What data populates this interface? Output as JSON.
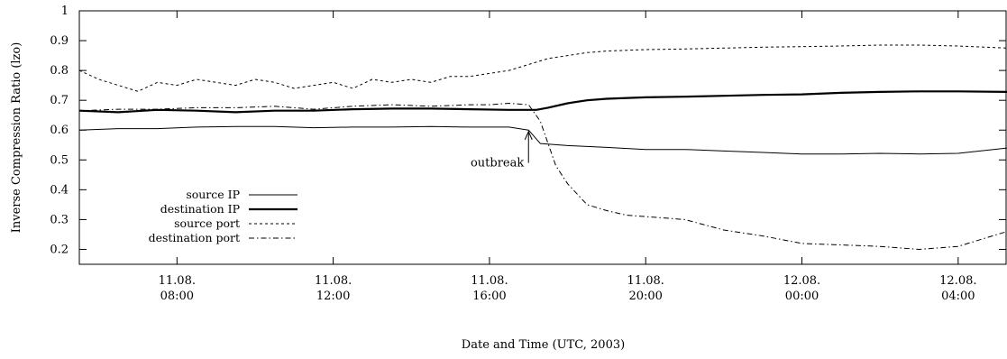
{
  "chart_data": {
    "type": "line",
    "title": "",
    "xlabel": "Date and Time (UTC, 2003)",
    "ylabel": "Inverse Compression Ratio (lzo)",
    "xlim_hours": [
      5.5,
      29.25
    ],
    "ylim": [
      0.15,
      1.0
    ],
    "grid": false,
    "legend_position": "bottom-left",
    "y_ticks": [
      "0.2",
      "0.3",
      "0.4",
      "0.5",
      "0.6",
      "0.7",
      "0.8",
      "0.9",
      "1"
    ],
    "x_ticks": [
      {
        "hour": 8,
        "line1": "11.08.",
        "line2": "08:00"
      },
      {
        "hour": 12,
        "line1": "11.08.",
        "line2": "12:00"
      },
      {
        "hour": 16,
        "line1": "11.08.",
        "line2": "16:00"
      },
      {
        "hour": 20,
        "line1": "11.08.",
        "line2": "20:00"
      },
      {
        "hour": 24,
        "line1": "12.08.",
        "line2": "00:00"
      },
      {
        "hour": 28,
        "line1": "12.08.",
        "line2": "04:00"
      }
    ],
    "annotations": [
      {
        "text": "outbreak",
        "x_hour": 17.0,
        "y_tip": 0.595,
        "y_tail": 0.49
      }
    ],
    "series": [
      {
        "name": "source IP",
        "style": "thin-solid",
        "x": [
          5.5,
          6.5,
          7.5,
          8.5,
          9.5,
          10.5,
          11.5,
          12.5,
          13.5,
          14.5,
          15.5,
          16.5,
          17.0,
          17.3,
          18.0,
          19.0,
          20.0,
          21.0,
          22.0,
          23.0,
          24.0,
          25.0,
          26.0,
          27.0,
          28.0,
          29.25
        ],
        "y": [
          0.6,
          0.605,
          0.605,
          0.61,
          0.612,
          0.612,
          0.608,
          0.61,
          0.61,
          0.612,
          0.61,
          0.61,
          0.6,
          0.555,
          0.548,
          0.542,
          0.535,
          0.535,
          0.53,
          0.525,
          0.52,
          0.52,
          0.522,
          0.52,
          0.522,
          0.54
        ]
      },
      {
        "name": "destination IP",
        "style": "thick-solid",
        "x": [
          5.5,
          6.5,
          7.5,
          8.5,
          9.5,
          10.5,
          11.5,
          12.5,
          13.5,
          14.5,
          15.5,
          16.5,
          17.2,
          17.5,
          18.0,
          18.5,
          19.0,
          20.0,
          21.0,
          22.0,
          23.0,
          24.0,
          25.0,
          26.0,
          27.0,
          28.0,
          29.25
        ],
        "y": [
          0.665,
          0.66,
          0.668,
          0.665,
          0.66,
          0.665,
          0.665,
          0.67,
          0.672,
          0.672,
          0.67,
          0.668,
          0.668,
          0.675,
          0.69,
          0.7,
          0.705,
          0.71,
          0.712,
          0.715,
          0.718,
          0.72,
          0.725,
          0.728,
          0.73,
          0.73,
          0.728
        ]
      },
      {
        "name": "source port",
        "style": "dashed",
        "x": [
          5.5,
          6.0,
          6.5,
          7.0,
          7.5,
          8.0,
          8.5,
          9.0,
          9.5,
          10.0,
          10.5,
          11.0,
          11.5,
          12.0,
          12.5,
          13.0,
          13.5,
          14.0,
          14.5,
          15.0,
          15.5,
          16.0,
          16.5,
          17.0,
          17.5,
          18.0,
          18.5,
          19.0,
          20.0,
          21.0,
          22.0,
          23.0,
          24.0,
          25.0,
          26.0,
          27.0,
          28.0,
          29.25
        ],
        "y": [
          0.8,
          0.77,
          0.75,
          0.73,
          0.76,
          0.75,
          0.77,
          0.76,
          0.75,
          0.77,
          0.76,
          0.74,
          0.75,
          0.76,
          0.74,
          0.77,
          0.76,
          0.77,
          0.76,
          0.78,
          0.78,
          0.79,
          0.8,
          0.82,
          0.84,
          0.85,
          0.86,
          0.865,
          0.87,
          0.872,
          0.875,
          0.878,
          0.88,
          0.882,
          0.885,
          0.885,
          0.882,
          0.875
        ]
      },
      {
        "name": "destination port",
        "style": "dash-dot",
        "x": [
          5.5,
          6.5,
          7.5,
          8.5,
          9.5,
          10.5,
          11.5,
          12.5,
          13.5,
          14.5,
          15.5,
          16.0,
          16.5,
          17.0,
          17.3,
          17.7,
          18.0,
          18.5,
          19.0,
          19.5,
          20.0,
          21.0,
          22.0,
          23.0,
          24.0,
          25.0,
          26.0,
          27.0,
          28.0,
          29.25
        ],
        "y": [
          0.665,
          0.67,
          0.67,
          0.675,
          0.675,
          0.68,
          0.67,
          0.68,
          0.685,
          0.68,
          0.685,
          0.685,
          0.69,
          0.685,
          0.63,
          0.48,
          0.42,
          0.35,
          0.33,
          0.315,
          0.31,
          0.3,
          0.265,
          0.245,
          0.22,
          0.215,
          0.21,
          0.2,
          0.21,
          0.26
        ]
      }
    ]
  }
}
